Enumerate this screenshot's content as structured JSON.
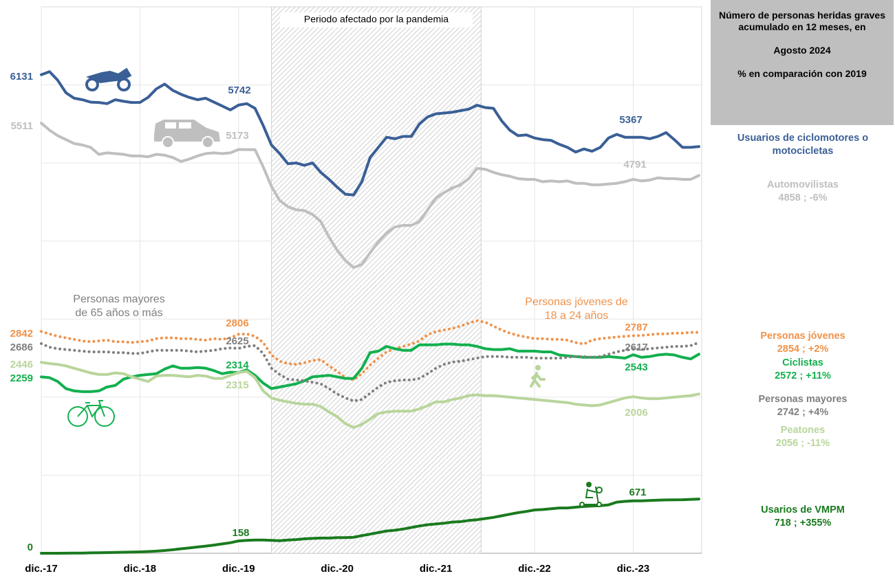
{
  "chart_data": {
    "type": "line",
    "categories": [
      "dic.-17",
      null,
      null,
      null,
      null,
      null,
      null,
      null,
      null,
      null,
      null,
      null,
      "dic.-18",
      null,
      null,
      null,
      null,
      null,
      null,
      null,
      null,
      null,
      null,
      null,
      "dic.-19",
      null,
      null,
      null,
      null,
      null,
      null,
      null,
      null,
      null,
      null,
      null,
      "dic.-20",
      null,
      null,
      null,
      null,
      null,
      null,
      null,
      null,
      null,
      null,
      null,
      "dic.-21",
      null,
      null,
      null,
      null,
      null,
      null,
      null,
      null,
      null,
      null,
      null,
      "dic.-22",
      null,
      null,
      null,
      null,
      null,
      null,
      null,
      null,
      null,
      null,
      null,
      "dic.-23",
      null,
      null,
      null,
      null,
      null,
      null,
      null,
      null
    ],
    "ylim": [
      0,
      7000
    ],
    "yticks": [
      0,
      1000,
      2000,
      3000,
      4000,
      5000,
      6000,
      7000
    ],
    "grid": true,
    "legend_header": [
      "Número de personas heridas graves acumulado en 12 meses, en",
      "Agosto 2024",
      "% en comparación con 2019"
    ],
    "shaded_period": {
      "label": "Periodo afectado por la pandemia",
      "from": 28,
      "to": 53.5
    },
    "annotations": [
      {
        "text": [
          "Personas mayores",
          "de 65 años o más"
        ],
        "color": "#7f7f7f"
      },
      {
        "text": [
          "Personas jóvenes de",
          "18 a 24 años"
        ],
        "color": "#f0924a"
      }
    ],
    "series": [
      {
        "name": "Usuarios de ciclomotores o motocicletas",
        "color": "#3a5f96",
        "style": "solid",
        "values": [
          6131,
          6170,
          6060,
          5900,
          5830,
          5810,
          5780,
          5775,
          5760,
          5810,
          5790,
          5775,
          5775,
          5840,
          5950,
          6010,
          5930,
          5880,
          5840,
          5810,
          5830,
          5780,
          5730,
          5680,
          5742,
          5760,
          5700,
          5480,
          5230,
          5120,
          4990,
          5000,
          4970,
          5000,
          4880,
          4790,
          4690,
          4600,
          4590,
          4760,
          5070,
          5200,
          5330,
          5310,
          5340,
          5340,
          5500,
          5590,
          5630,
          5640,
          5650,
          5670,
          5690,
          5740,
          5710,
          5700,
          5540,
          5420,
          5350,
          5360,
          5320,
          5300,
          5290,
          5240,
          5200,
          5140,
          5180,
          5150,
          5200,
          5320,
          5367,
          5330,
          5330,
          5330,
          5310,
          5340,
          5390,
          5300,
          5200,
          5200,
          5210
        ]
      },
      {
        "name": "Automovilistas",
        "color": "#bfbfbf",
        "style": "solid",
        "summary": "4858 ; -6%",
        "values": [
          5511,
          5420,
          5350,
          5300,
          5250,
          5230,
          5200,
          5110,
          5130,
          5120,
          5110,
          5090,
          5090,
          5080,
          5110,
          5100,
          5070,
          5020,
          5050,
          5090,
          5120,
          5130,
          5120,
          5130,
          5173,
          5170,
          5170,
          4950,
          4700,
          4520,
          4440,
          4400,
          4390,
          4340,
          4250,
          4050,
          3880,
          3750,
          3660,
          3700,
          3850,
          3990,
          4100,
          4180,
          4200,
          4200,
          4250,
          4400,
          4550,
          4620,
          4680,
          4720,
          4800,
          4930,
          4920,
          4880,
          4850,
          4830,
          4800,
          4790,
          4790,
          4760,
          4770,
          4760,
          4770,
          4740,
          4740,
          4720,
          4720,
          4730,
          4740,
          4760,
          4791,
          4770,
          4780,
          4810,
          4800,
          4800,
          4790,
          4790,
          4840
        ]
      },
      {
        "name": "Personas jóvenes",
        "color": "#f0924a",
        "style": "dotted",
        "summary": "2854 ; +2%",
        "values": [
          2842,
          2810,
          2780,
          2760,
          2740,
          2720,
          2710,
          2720,
          2730,
          2710,
          2710,
          2700,
          2710,
          2720,
          2750,
          2760,
          2760,
          2750,
          2750,
          2740,
          2730,
          2750,
          2740,
          2760,
          2806,
          2810,
          2780,
          2700,
          2540,
          2460,
          2430,
          2420,
          2440,
          2470,
          2480,
          2400,
          2330,
          2250,
          2220,
          2300,
          2410,
          2500,
          2580,
          2620,
          2650,
          2680,
          2720,
          2800,
          2840,
          2860,
          2880,
          2910,
          2950,
          2980,
          2960,
          2910,
          2860,
          2820,
          2790,
          2770,
          2750,
          2750,
          2740,
          2740,
          2730,
          2700,
          2680,
          2730,
          2750,
          2760,
          2770,
          2780,
          2787,
          2790,
          2800,
          2810,
          2810,
          2820,
          2820,
          2830,
          2830
        ]
      },
      {
        "name": "Ciclistas",
        "color": "#13b04f",
        "style": "solid",
        "summary": "2572 ; +11%",
        "values": [
          2259,
          2250,
          2200,
          2110,
          2080,
          2070,
          2070,
          2080,
          2130,
          2150,
          2230,
          2260,
          2280,
          2290,
          2300,
          2360,
          2400,
          2370,
          2370,
          2380,
          2370,
          2340,
          2300,
          2320,
          2314,
          2350,
          2280,
          2180,
          2110,
          2130,
          2150,
          2170,
          2210,
          2260,
          2270,
          2280,
          2260,
          2240,
          2240,
          2370,
          2570,
          2590,
          2650,
          2620,
          2600,
          2600,
          2670,
          2670,
          2670,
          2680,
          2680,
          2670,
          2670,
          2650,
          2620,
          2610,
          2610,
          2620,
          2590,
          2590,
          2590,
          2580,
          2580,
          2540,
          2530,
          2520,
          2510,
          2510,
          2510,
          2520,
          2510,
          2500,
          2543,
          2510,
          2520,
          2540,
          2550,
          2540,
          2510,
          2490,
          2550
        ]
      },
      {
        "name": "Personas mayores",
        "color": "#7f7f7f",
        "style": "dotted",
        "summary": "2742 ; +4%",
        "values": [
          2686,
          2640,
          2620,
          2610,
          2600,
          2590,
          2580,
          2580,
          2580,
          2570,
          2570,
          2560,
          2560,
          2580,
          2600,
          2600,
          2600,
          2600,
          2590,
          2580,
          2590,
          2600,
          2620,
          2630,
          2625,
          2650,
          2660,
          2560,
          2370,
          2290,
          2230,
          2220,
          2210,
          2190,
          2170,
          2110,
          2040,
          1990,
          1950,
          1970,
          2050,
          2130,
          2190,
          2210,
          2220,
          2220,
          2240,
          2300,
          2370,
          2420,
          2450,
          2460,
          2480,
          2500,
          2520,
          2520,
          2520,
          2510,
          2510,
          2510,
          2500,
          2500,
          2500,
          2500,
          2510,
          2520,
          2520,
          2510,
          2520,
          2550,
          2580,
          2600,
          2617,
          2610,
          2620,
          2630,
          2640,
          2650,
          2650,
          2660,
          2700
        ]
      },
      {
        "name": "Peatones",
        "color": "#b9d59c",
        "style": "solid",
        "summary": "2056 ; -11%",
        "values": [
          2446,
          2430,
          2420,
          2400,
          2370,
          2340,
          2310,
          2290,
          2290,
          2310,
          2300,
          2260,
          2230,
          2200,
          2270,
          2280,
          2280,
          2270,
          2260,
          2280,
          2270,
          2240,
          2240,
          2280,
          2315,
          2330,
          2250,
          2080,
          1990,
          1960,
          1940,
          1920,
          1910,
          1910,
          1880,
          1810,
          1750,
          1660,
          1610,
          1650,
          1720,
          1790,
          1810,
          1820,
          1820,
          1820,
          1850,
          1890,
          1940,
          1940,
          1970,
          1990,
          2020,
          2030,
          2020,
          2020,
          2010,
          2000,
          1990,
          1980,
          1970,
          1960,
          1950,
          1940,
          1930,
          1910,
          1900,
          1890,
          1900,
          1930,
          1960,
          1990,
          2006,
          1990,
          1980,
          1980,
          1990,
          2000,
          2010,
          2020,
          2040
        ]
      },
      {
        "name": "Usarios de VMPM",
        "color": "#1a7a1e",
        "style": "solid",
        "summary": "718 ; +355%",
        "values": [
          0,
          0,
          0,
          1,
          2,
          3,
          5,
          7,
          9,
          11,
          13,
          15,
          18,
          22,
          27,
          35,
          45,
          57,
          68,
          80,
          92,
          105,
          120,
          135,
          158,
          165,
          170,
          170,
          165,
          160,
          170,
          175,
          185,
          190,
          195,
          195,
          200,
          200,
          205,
          225,
          245,
          265,
          285,
          295,
          310,
          330,
          350,
          365,
          375,
          385,
          400,
          405,
          420,
          430,
          445,
          460,
          480,
          500,
          520,
          535,
          555,
          560,
          570,
          580,
          580,
          590,
          600,
          605,
          610,
          620,
          655,
          665,
          671,
          672,
          675,
          680,
          683,
          685,
          686,
          690,
          695
        ]
      }
    ]
  }
}
